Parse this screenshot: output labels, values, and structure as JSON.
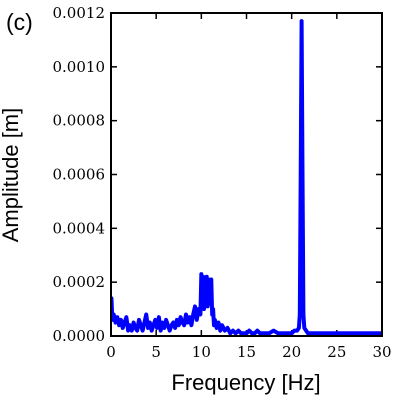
{
  "chart_data": {
    "type": "line",
    "panel_label": "(c)",
    "title": "",
    "xlabel": "Frequency [Hz]",
    "ylabel": "Amplitude [m]",
    "xlim": [
      0,
      30
    ],
    "ylim": [
      0,
      0.0012
    ],
    "xticks": [
      0,
      5,
      10,
      15,
      20,
      25,
      30
    ],
    "xtick_labels": [
      "0",
      "5",
      "10",
      "15",
      "20",
      "25",
      "30"
    ],
    "yticks": [
      0,
      0.0002,
      0.0004,
      0.0006,
      0.0008,
      0.001,
      0.0012
    ],
    "ytick_labels": [
      "0.0000",
      "0.0002",
      "0.0004",
      "0.0006",
      "0.0008",
      "0.0010",
      "0.0012"
    ],
    "grid": false,
    "series_color": "#0000ff",
    "series": [
      {
        "x": [
          0,
          0.05,
          0.15,
          0.3,
          0.5,
          0.7,
          0.9,
          1.1,
          1.3,
          1.5,
          1.7,
          1.9,
          2.1,
          2.3,
          2.5,
          2.7,
          2.9,
          3.1,
          3.3,
          3.5,
          3.7,
          3.9,
          4.1,
          4.3,
          4.5,
          4.7,
          4.9,
          5.1,
          5.3,
          5.5,
          5.7,
          5.9,
          6.1,
          6.3,
          6.5,
          6.7,
          6.9,
          7.1,
          7.3,
          7.5,
          7.7,
          7.9,
          8.1,
          8.3,
          8.5,
          8.7,
          8.9,
          9.1,
          9.3,
          9.5,
          9.7,
          9.9,
          10.0,
          10.1,
          10.2,
          10.3,
          10.4,
          10.5,
          10.6,
          10.7,
          10.8,
          10.9,
          11.0,
          11.1,
          11.2,
          11.3,
          11.4,
          11.5,
          11.7,
          11.9,
          12.1,
          12.3,
          12.6,
          12.9,
          13.2,
          13.5,
          13.8,
          14.1,
          14.4,
          14.7,
          15.0,
          15.3,
          15.6,
          15.9,
          16.2,
          16.5,
          17.0,
          17.5,
          18.0,
          18.5,
          19.0,
          19.5,
          20.0,
          20.3,
          20.6,
          20.8,
          20.9,
          21.0,
          21.1,
          21.2,
          21.3,
          21.4,
          21.6,
          21.8,
          22.0,
          22.5,
          23.0,
          23.5,
          24.0,
          24.5,
          25.0,
          25.5,
          26.0,
          26.5,
          27.0,
          27.5,
          28.0,
          28.5,
          29.0,
          29.5,
          30.0
        ],
        "y": [
          0.00012,
          0.00014,
          6e-05,
          8e-05,
          5e-05,
          7e-05,
          4e-05,
          6e-05,
          3e-05,
          5e-05,
          7e-05,
          2e-05,
          4e-05,
          2e-05,
          5e-05,
          3e-05,
          2e-05,
          6e-05,
          4e-05,
          2e-05,
          5e-05,
          8e-05,
          3e-05,
          5e-05,
          2e-05,
          4e-05,
          6e-05,
          3e-05,
          7e-05,
          2e-05,
          5e-05,
          3e-05,
          6e-05,
          4e-05,
          2e-05,
          4e-05,
          5e-05,
          3e-05,
          6e-05,
          4e-05,
          7e-05,
          5e-05,
          4e-05,
          8e-05,
          5e-05,
          7e-05,
          4e-05,
          8e-05,
          0.00011,
          6e-05,
          0.0001,
          8e-05,
          0.00023,
          0.00012,
          0.00022,
          0.0001,
          0.00021,
          0.00013,
          0.00022,
          0.00011,
          0.00021,
          0.00012,
          0.00019,
          0.00021,
          8e-05,
          0.0001,
          4e-05,
          6e-05,
          3e-05,
          5e-05,
          2e-05,
          4e-05,
          2e-05,
          3e-05,
          1e-05,
          2e-05,
          1e-05,
          2e-05,
          1e-05,
          1e-05,
          1e-05,
          2e-05,
          1e-05,
          1e-05,
          2e-05,
          1e-05,
          1e-05,
          1e-05,
          2e-05,
          1e-05,
          1e-05,
          1e-05,
          1e-05,
          2e-05,
          2e-05,
          3e-05,
          8e-05,
          0.0006,
          0.00117,
          0.0006,
          8e-05,
          3e-05,
          2e-05,
          1e-05,
          1e-05,
          1e-05,
          1e-05,
          1e-05,
          1e-05,
          1e-05,
          1e-05,
          1e-05,
          1e-05,
          1e-05,
          1e-05,
          1e-05,
          1e-05,
          1e-05,
          1e-05,
          1e-05,
          1e-05
        ]
      }
    ]
  }
}
